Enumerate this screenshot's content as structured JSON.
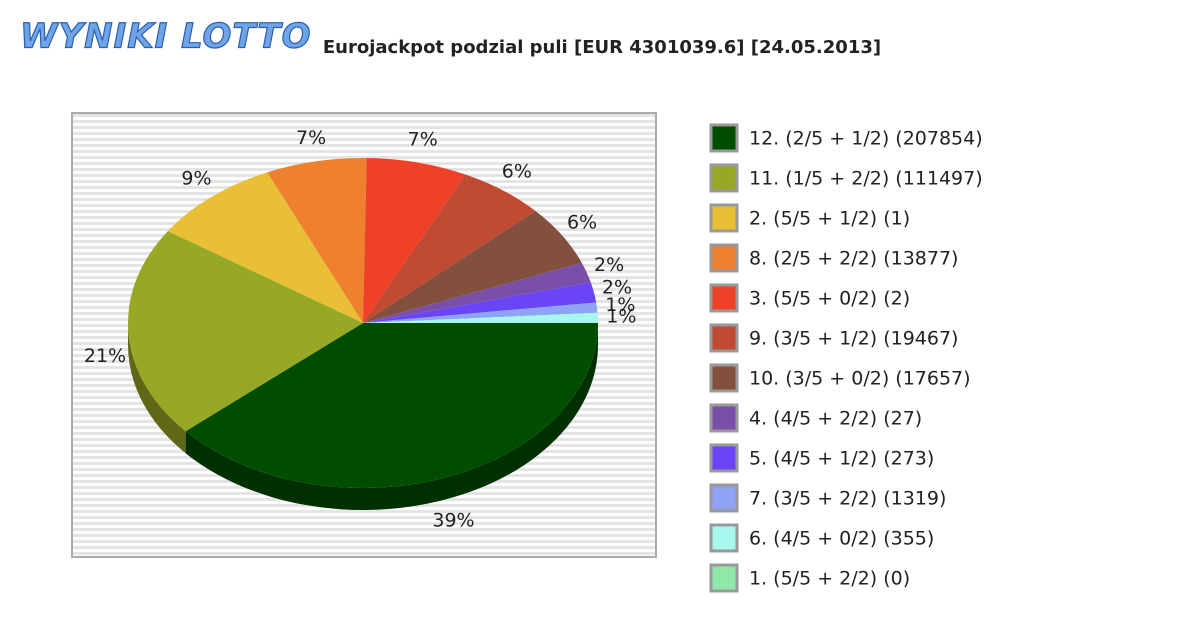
{
  "logo": "WYNIKI LOTTO",
  "chart_data": {
    "type": "pie",
    "title": "Eurojackpot podzial puli [EUR 4301039.6] [24.05.2013]",
    "categories": [
      "12. (2/5 + 1/2) (207854)",
      "11. (1/5 + 2/2) (111497)",
      "2. (5/5 + 1/2) (1)",
      "8. (2/5 + 2/2) (13877)",
      "3. (5/5 + 0/2) (2)",
      "9. (3/5 + 1/2) (19467)",
      "10. (3/5 + 0/2) (17657)",
      "4. (4/5 + 2/2) (27)",
      "5. (4/5 + 1/2) (273)",
      "7. (3/5 + 2/2) (1319)",
      "6. (4/5 + 0/2) (355)",
      "1. (5/5 + 2/2) (0)"
    ],
    "values": [
      39,
      21,
      9,
      7,
      7,
      6,
      6,
      2,
      2,
      1,
      1,
      0
    ],
    "value_labels": [
      "39%",
      "21%",
      "9%",
      "7%",
      "7%",
      "6%",
      "6%",
      "2%",
      "2%",
      "1%",
      "1%",
      null
    ],
    "colors": [
      "#004d00",
      "#97a825",
      "#e8bf35",
      "#ee8030",
      "#ef4128",
      "#c04a32",
      "#84503e",
      "#7a4fa8",
      "#6a45f5",
      "#8fa3f5",
      "#a8f7ee",
      "#8ee8a8"
    ]
  }
}
